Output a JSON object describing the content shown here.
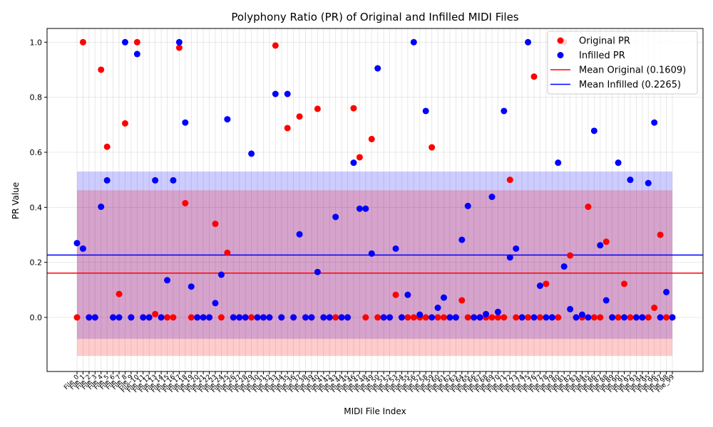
{
  "chart_data": {
    "type": "scatter",
    "title": "Polyphony Ratio (PR) of Original and Infilled MIDI Files",
    "xlabel": "MIDI File Index",
    "ylabel": "PR Value",
    "ylim": [
      -0.17,
      1.06
    ],
    "yticks": [
      "0.0",
      "0.2",
      "0.4",
      "0.6",
      "0.8",
      "1.0"
    ],
    "grid": true,
    "legend_position": "top-right",
    "categories": [
      "File_0",
      "File_1",
      "File_2",
      "File_3",
      "File_4",
      "File_5",
      "File_6",
      "File_7",
      "File_8",
      "File_9",
      "File_10",
      "File_11",
      "File_12",
      "File_13",
      "File_14",
      "File_15",
      "File_16",
      "File_17",
      "File_18",
      "File_19",
      "File_20",
      "File_21",
      "File_22",
      "File_23",
      "File_24",
      "File_25",
      "File_26",
      "File_27",
      "File_28",
      "File_29",
      "File_30",
      "File_31",
      "File_32",
      "File_33",
      "File_34",
      "File_35",
      "File_36",
      "File_37",
      "File_38",
      "File_39",
      "File_40",
      "File_41",
      "File_42",
      "File_43",
      "File_44",
      "File_45",
      "File_46",
      "File_47",
      "File_48",
      "File_49",
      "File_50",
      "File_51",
      "File_52",
      "File_53",
      "File_54",
      "File_55",
      "File_56",
      "File_57",
      "File_58",
      "File_59",
      "File_60",
      "File_61",
      "File_62",
      "File_63",
      "File_64",
      "File_65",
      "File_66",
      "File_67",
      "File_68",
      "File_69",
      "File_70",
      "File_71",
      "File_72",
      "File_73",
      "File_74",
      "File_75",
      "File_76",
      "File_77",
      "File_78",
      "File_79",
      "File_80",
      "File_81",
      "File_82",
      "File_83",
      "File_84",
      "File_85",
      "File_86",
      "File_87",
      "File_88",
      "File_89",
      "File_90",
      "File_91",
      "File_92",
      "File_93",
      "File_94",
      "File_95",
      "File_96",
      "File_97",
      "File_98",
      "File_99"
    ],
    "series": [
      {
        "name": "Original PR",
        "color": "#ff0000",
        "values": [
          0,
          1.0,
          0,
          0,
          0.9,
          0.62,
          0,
          0.085,
          0.705,
          0,
          1.0,
          0,
          0,
          0.012,
          0,
          0,
          0,
          0.98,
          0.415,
          0,
          0,
          0,
          0,
          0.34,
          0,
          0.235,
          0,
          0,
          0,
          0,
          0,
          0,
          0,
          0.988,
          0,
          0.688,
          0,
          0.73,
          0,
          0,
          0.758,
          0,
          0,
          0,
          0,
          0,
          0.76,
          0.582,
          0,
          0.648,
          0,
          0,
          0,
          0.082,
          0,
          0,
          0,
          0,
          0,
          0.618,
          0,
          0,
          0,
          0,
          0.062,
          0,
          0,
          0,
          0,
          0,
          0,
          0,
          0.5,
          0,
          0,
          0,
          0.875,
          0,
          0.122,
          0,
          0,
          1.0,
          0.225,
          0,
          0,
          0.402,
          0,
          0,
          0.275,
          0,
          0,
          0.122,
          0,
          0,
          0,
          0,
          0.035,
          0.3,
          0,
          0
        ]
      },
      {
        "name": "Infilled PR",
        "color": "#0000ff",
        "values": [
          0.27,
          0.25,
          0,
          0,
          0.402,
          0.498,
          0,
          0,
          1.0,
          0,
          0.957,
          0,
          0,
          0.498,
          0,
          0.135,
          0.498,
          1.0,
          0.708,
          0.112,
          0,
          0,
          0,
          0.052,
          0.155,
          0.72,
          0,
          0,
          0,
          0.595,
          0,
          0,
          0,
          0.812,
          0,
          0.812,
          0,
          0.302,
          0,
          0,
          0.165,
          0,
          0,
          0.365,
          0,
          0,
          0.562,
          0.395,
          0.395,
          0.232,
          0.905,
          0,
          0,
          0.25,
          0,
          0.082,
          1.0,
          0.01,
          0.75,
          0,
          0.035,
          0.072,
          0,
          0,
          0.282,
          0.405,
          0,
          0,
          0.012,
          0.438,
          0.02,
          0.75,
          0.218,
          0.25,
          0,
          1.0,
          0,
          0.115,
          0,
          0,
          0.562,
          0.185,
          0.03,
          0,
          0.01,
          0,
          0.678,
          0.262,
          0.062,
          0,
          0.562,
          0,
          0.5,
          0,
          0,
          0.488,
          0.708,
          0,
          0.092,
          0
        ]
      }
    ],
    "mean_lines": [
      {
        "name": "Mean Original (0.1609)",
        "value": 0.1609,
        "color": "#ff0000"
      },
      {
        "name": "Mean Infilled (0.2265)",
        "value": 0.2265,
        "color": "#0000ff"
      }
    ],
    "bands": [
      {
        "series": "Infilled PR",
        "range": [
          -0.078,
          0.53
        ],
        "color": "#0000ff"
      },
      {
        "series": "Original PR",
        "range": [
          -0.14,
          0.462
        ],
        "color": "#ff0000"
      }
    ]
  }
}
